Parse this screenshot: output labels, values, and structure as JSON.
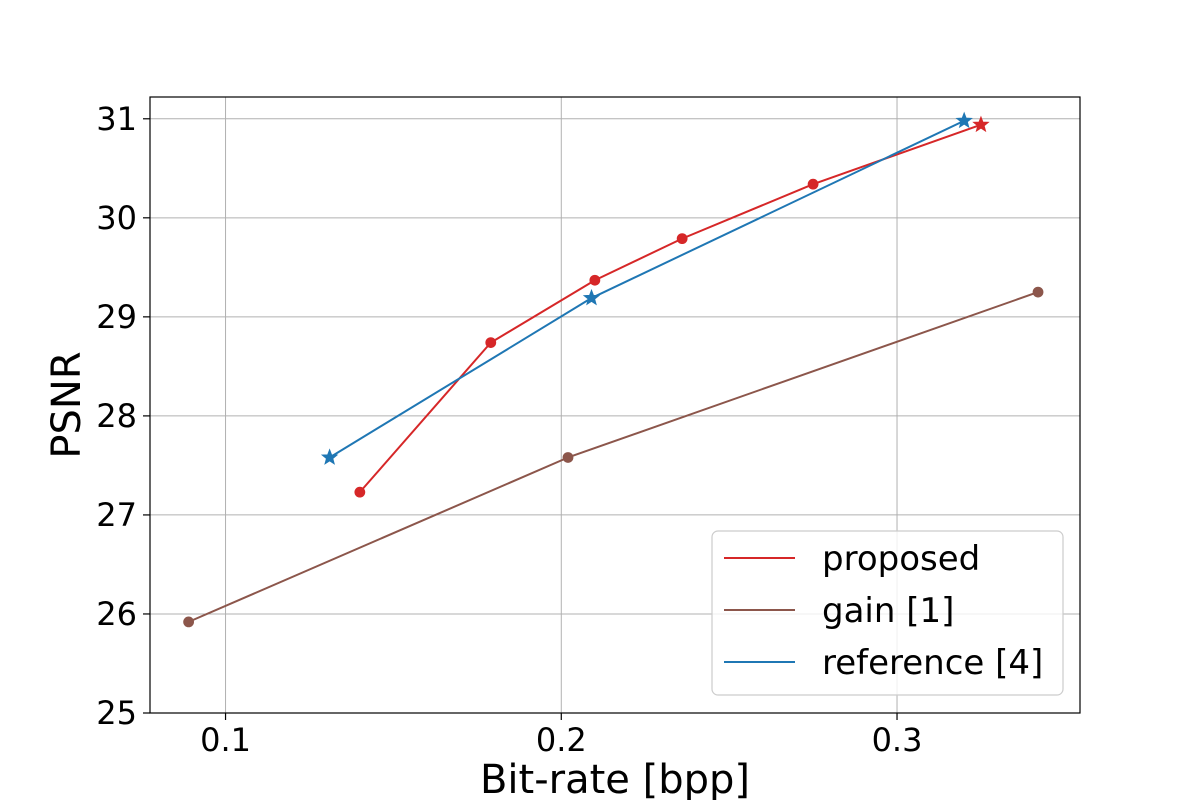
{
  "chart_data": {
    "type": "line",
    "title": "",
    "xlabel": "Bit-rate [bpp]",
    "ylabel": "PSNR",
    "xlim": [
      0.0775,
      0.3545
    ],
    "ylim": [
      25,
      31.22
    ],
    "xticks": [
      0.1,
      0.2,
      0.3
    ],
    "xtick_labels": [
      "0.1",
      "0.2",
      "0.3"
    ],
    "yticks": [
      25,
      26,
      27,
      28,
      29,
      30,
      31
    ],
    "ytick_labels": [
      "25",
      "26",
      "27",
      "28",
      "29",
      "30",
      "31"
    ],
    "grid": true,
    "legend_position": "lower-right",
    "series": [
      {
        "name": "proposed",
        "color": "#d62728",
        "marker": "circle",
        "x": [
          0.14,
          0.179,
          0.21,
          0.236,
          0.275
        ],
        "y": [
          27.23,
          28.74,
          29.37,
          29.79,
          30.34
        ],
        "end_marker": {
          "shape": "star",
          "x": 0.325,
          "y": 30.94
        }
      },
      {
        "name": "gain [1]",
        "color": "#8c564b",
        "marker": "circle",
        "x": [
          0.089,
          0.202,
          0.342
        ],
        "y": [
          25.92,
          27.58,
          29.25
        ]
      },
      {
        "name": "reference [4]",
        "color": "#1f77b4",
        "marker": "star",
        "x": [
          0.131,
          0.209,
          0.32
        ],
        "y": [
          27.58,
          29.19,
          30.98
        ]
      }
    ]
  }
}
